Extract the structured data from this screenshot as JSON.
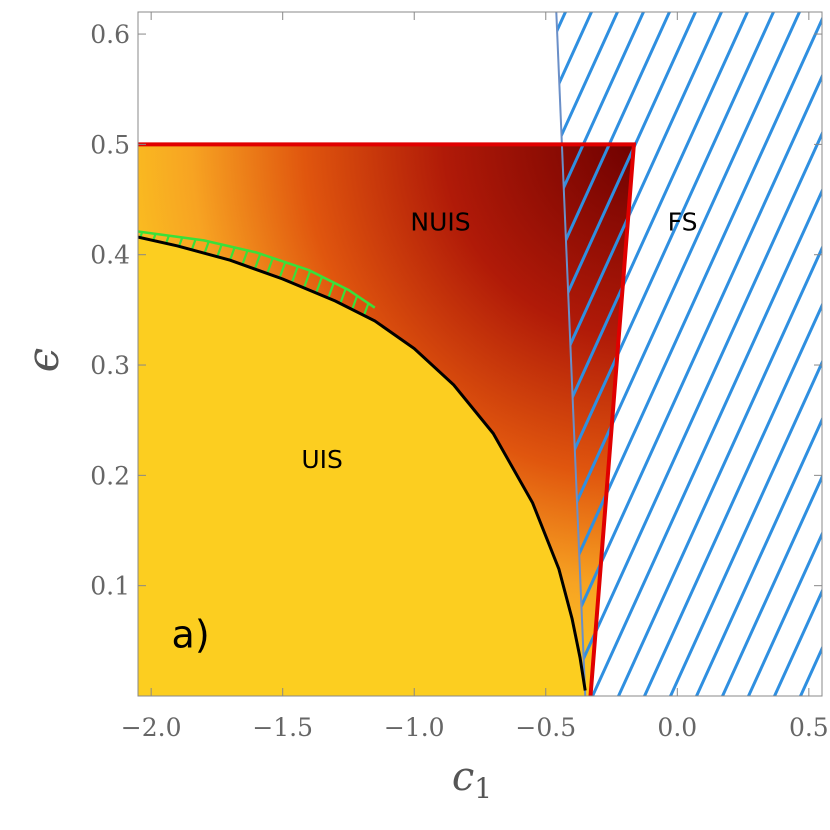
{
  "chart_data": {
    "type": "area",
    "title": "",
    "xlabel": "c",
    "xlabel_sub": "1",
    "ylabel": "ϵ",
    "xlim": [
      -2.05,
      0.55
    ],
    "ylim": [
      0.0,
      0.62
    ],
    "xticks": [
      -2.0,
      -1.5,
      -1.0,
      -0.5,
      0.0,
      0.5
    ],
    "xtick_labels": [
      "−2.0",
      "−1.5",
      "−1.0",
      "−0.5",
      "0.0",
      "0.5"
    ],
    "yticks": [
      0.1,
      0.2,
      0.3,
      0.4,
      0.5,
      0.6
    ],
    "ytick_labels": [
      "0.1",
      "0.2",
      "0.3",
      "0.4",
      "0.5",
      "0.6"
    ],
    "grid": false,
    "regions": [
      {
        "label": "UIS",
        "color": "#fcce20",
        "anchor": [
          -1.35,
          0.215
        ]
      },
      {
        "label": "NUIS",
        "color": "#c0200a",
        "anchor": [
          -0.9,
          0.43
        ]
      },
      {
        "label": "FS",
        "color": "#2f8fe0",
        "anchor": [
          0.02,
          0.43
        ]
      }
    ],
    "panel_label": {
      "text": "a)",
      "anchor": [
        -1.85,
        0.052
      ]
    },
    "uis_boundary": {
      "color": "#000000",
      "x": [
        -2.05,
        -1.9,
        -1.7,
        -1.5,
        -1.3,
        -1.15,
        -1.0,
        -0.85,
        -0.7,
        -0.55,
        -0.45,
        -0.4,
        -0.37,
        -0.35
      ],
      "y": [
        0.416,
        0.408,
        0.395,
        0.378,
        0.358,
        0.34,
        0.315,
        0.282,
        0.238,
        0.175,
        0.115,
        0.07,
        0.035,
        0.005
      ]
    },
    "nuis_top": 0.5,
    "nuis_right_edge": {
      "x": [
        -0.165,
        -0.33
      ],
      "y": [
        0.5,
        0.005
      ],
      "color": "#e00000"
    },
    "fs_left_edge": {
      "x": [
        -0.46,
        -0.35
      ],
      "y": [
        0.62,
        0.005
      ],
      "color": "#6a8fc8"
    },
    "green_hatch": {
      "color": "#39e03a",
      "x_upper": [
        -2.05,
        -1.8,
        -1.6,
        -1.4,
        -1.25,
        -1.15
      ],
      "y_upper": [
        0.421,
        0.413,
        0.402,
        0.386,
        0.368,
        0.352
      ]
    },
    "colors": {
      "uis_fill": "#fcce20",
      "nuis_dark": "#750000",
      "nuis_mid": "#c8280a",
      "nuis_light": "#f4a020",
      "hatch_blue": "#2f8fe0",
      "frame": "#888888"
    }
  }
}
